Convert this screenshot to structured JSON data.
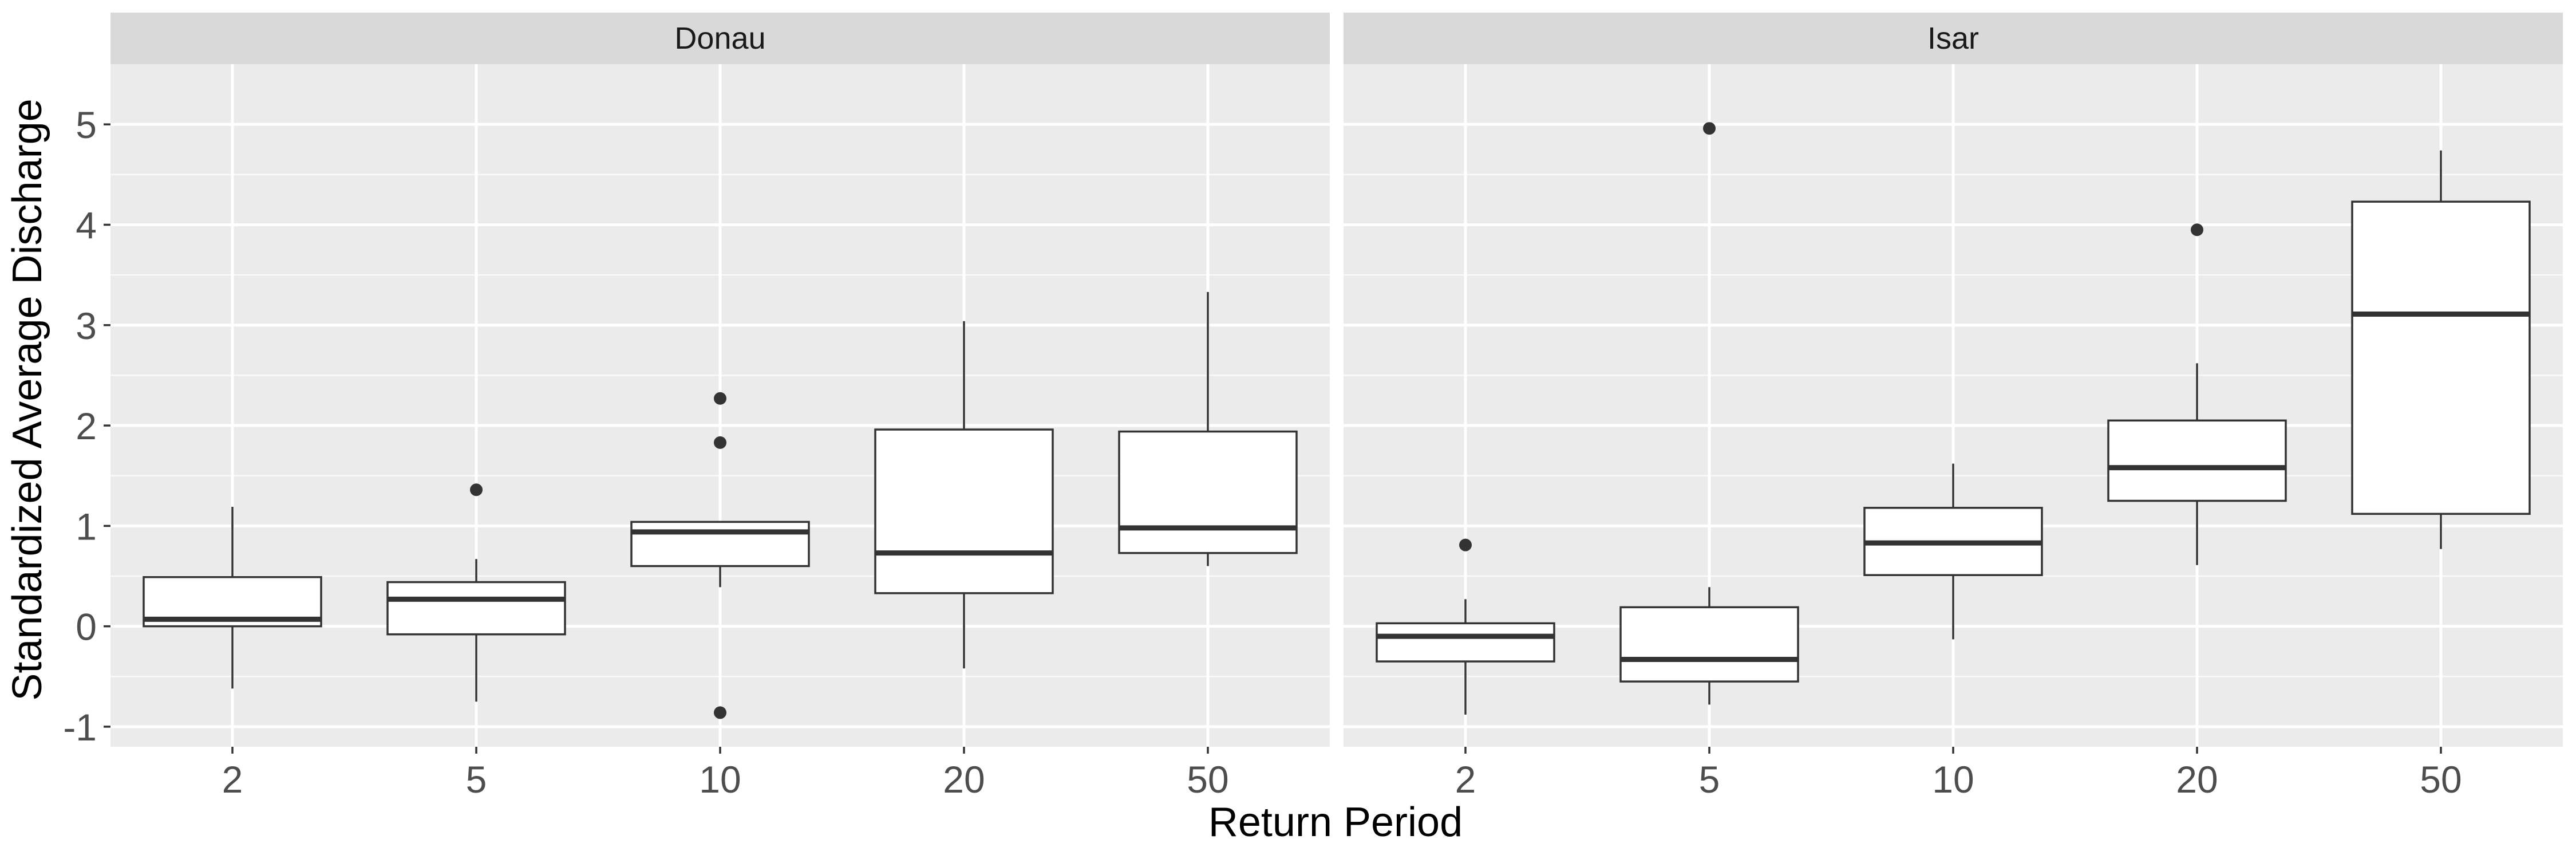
{
  "chart_data": {
    "type": "boxplot",
    "xlabel": "Return Period",
    "ylabel": "Standardized Average Discharge",
    "categories": [
      "2",
      "5",
      "10",
      "20",
      "50"
    ],
    "ylim": [
      -1.2,
      5.6
    ],
    "yticks": [
      -1,
      0,
      1,
      2,
      3,
      4,
      5
    ],
    "grid": true,
    "colors": {
      "panel_bg": "#ebebeb",
      "strip_bg": "#d9d9d9",
      "grid_major": "#ffffff",
      "box_fill": "#ffffff",
      "box_line": "#333333",
      "tick_text": "#4d4d4d",
      "title_text": "#000000"
    },
    "panels": [
      {
        "name": "Donau",
        "boxes": [
          {
            "category": "2",
            "whisker_low": -0.62,
            "q1": 0.0,
            "median": 0.07,
            "q3": 0.49,
            "whisker_high": 1.19,
            "outliers": []
          },
          {
            "category": "5",
            "whisker_low": -0.75,
            "q1": -0.08,
            "median": 0.27,
            "q3": 0.44,
            "whisker_high": 0.67,
            "outliers": [
              1.36
            ]
          },
          {
            "category": "10",
            "whisker_low": 0.39,
            "q1": 0.6,
            "median": 0.94,
            "q3": 1.04,
            "whisker_high": 1.04,
            "outliers": [
              2.27,
              1.83,
              -0.86
            ]
          },
          {
            "category": "20",
            "whisker_low": -0.42,
            "q1": 0.33,
            "median": 0.73,
            "q3": 1.96,
            "whisker_high": 3.04,
            "outliers": []
          },
          {
            "category": "50",
            "whisker_low": 0.6,
            "q1": 0.73,
            "median": 0.98,
            "q3": 1.94,
            "whisker_high": 3.33,
            "outliers": []
          }
        ]
      },
      {
        "name": "Isar",
        "boxes": [
          {
            "category": "2",
            "whisker_low": -0.88,
            "q1": -0.35,
            "median": -0.1,
            "q3": 0.03,
            "whisker_high": 0.27,
            "outliers": [
              0.81
            ]
          },
          {
            "category": "5",
            "whisker_low": -0.78,
            "q1": -0.55,
            "median": -0.33,
            "q3": 0.19,
            "whisker_high": 0.39,
            "outliers": [
              4.96
            ]
          },
          {
            "category": "10",
            "whisker_low": -0.13,
            "q1": 0.51,
            "median": 0.83,
            "q3": 1.18,
            "whisker_high": 1.62,
            "outliers": []
          },
          {
            "category": "20",
            "whisker_low": 0.61,
            "q1": 1.25,
            "median": 1.58,
            "q3": 2.05,
            "whisker_high": 2.62,
            "outliers": [
              3.95
            ]
          },
          {
            "category": "50",
            "whisker_low": 0.77,
            "q1": 1.12,
            "median": 3.11,
            "q3": 4.23,
            "whisker_high": 4.74,
            "outliers": []
          }
        ]
      }
    ]
  }
}
